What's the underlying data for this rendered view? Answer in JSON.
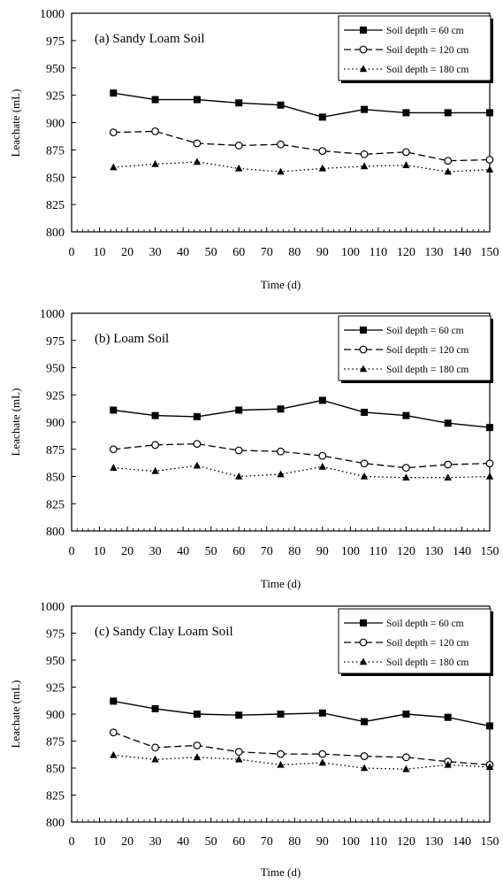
{
  "chart_data": [
    {
      "type": "line",
      "panel_title": "(a) Sandy Loam Soil",
      "xlabel": "Time (d)",
      "ylabel": "Leachate (mL)",
      "xlim": [
        0,
        150
      ],
      "ylim": [
        800,
        1000
      ],
      "xticks": [
        0,
        10,
        20,
        30,
        40,
        50,
        60,
        70,
        80,
        90,
        100,
        110,
        120,
        130,
        140,
        150
      ],
      "yticks": [
        800,
        825,
        850,
        875,
        900,
        925,
        950,
        975,
        1000
      ],
      "legend_position": "top-right",
      "x": [
        15,
        30,
        45,
        60,
        75,
        90,
        105,
        120,
        135,
        150
      ],
      "series": [
        {
          "name": "Soil depth = 60 cm",
          "line": "solid",
          "marker": "filled-square",
          "values": [
            927,
            921,
            921,
            918,
            916,
            905,
            912,
            909,
            909,
            909
          ]
        },
        {
          "name": "Soil depth = 120 cm",
          "line": "dashed",
          "marker": "open-circle",
          "values": [
            891,
            892,
            881,
            879,
            880,
            874,
            871,
            873,
            865,
            866
          ]
        },
        {
          "name": "Soil depth = 180 cm",
          "line": "dotted",
          "marker": "filled-triangle",
          "values": [
            859,
            862,
            864,
            858,
            855,
            858,
            860,
            861,
            855,
            857
          ]
        }
      ]
    },
    {
      "type": "line",
      "panel_title": "(b) Loam Soil",
      "xlabel": "Time (d)",
      "ylabel": "Leachate (mL)",
      "xlim": [
        0,
        150
      ],
      "ylim": [
        800,
        1000
      ],
      "xticks": [
        0,
        10,
        20,
        30,
        40,
        50,
        60,
        70,
        80,
        90,
        100,
        110,
        120,
        130,
        140,
        150
      ],
      "yticks": [
        800,
        825,
        850,
        875,
        900,
        925,
        950,
        975,
        1000
      ],
      "legend_position": "top-right",
      "x": [
        15,
        30,
        45,
        60,
        75,
        90,
        105,
        120,
        135,
        150
      ],
      "series": [
        {
          "name": "Soil depth = 60 cm",
          "line": "solid",
          "marker": "filled-square",
          "values": [
            911,
            906,
            905,
            911,
            912,
            920,
            909,
            906,
            899,
            895
          ]
        },
        {
          "name": "Soil depth = 120 cm",
          "line": "dashed",
          "marker": "open-circle",
          "values": [
            875,
            879,
            880,
            874,
            873,
            869,
            862,
            858,
            861,
            862
          ]
        },
        {
          "name": "Soil depth = 180 cm",
          "line": "dotted",
          "marker": "filled-triangle",
          "values": [
            858,
            855,
            860,
            850,
            852,
            859,
            850,
            849,
            849,
            850
          ]
        }
      ]
    },
    {
      "type": "line",
      "panel_title": "(c) Sandy Clay Loam Soil",
      "xlabel": "Time (d)",
      "ylabel": "Leachate (mL)",
      "xlim": [
        0,
        150
      ],
      "ylim": [
        800,
        1000
      ],
      "xticks": [
        0,
        10,
        20,
        30,
        40,
        50,
        60,
        70,
        80,
        90,
        100,
        110,
        120,
        130,
        140,
        150
      ],
      "yticks": [
        800,
        825,
        850,
        875,
        900,
        925,
        950,
        975,
        1000
      ],
      "legend_position": "top-right",
      "x": [
        15,
        30,
        45,
        60,
        75,
        90,
        105,
        120,
        135,
        150
      ],
      "series": [
        {
          "name": "Soil depth = 60 cm",
          "line": "solid",
          "marker": "filled-square",
          "values": [
            912,
            905,
            900,
            899,
            900,
            901,
            893,
            900,
            897,
            889
          ]
        },
        {
          "name": "Soil depth = 120 cm",
          "line": "dashed",
          "marker": "open-circle",
          "values": [
            883,
            869,
            871,
            865,
            863,
            863,
            861,
            860,
            856,
            853
          ]
        },
        {
          "name": "Soil depth = 180 cm",
          "line": "dotted",
          "marker": "filled-triangle",
          "values": [
            862,
            858,
            860,
            858,
            853,
            855,
            850,
            849,
            853,
            851
          ]
        }
      ]
    }
  ]
}
